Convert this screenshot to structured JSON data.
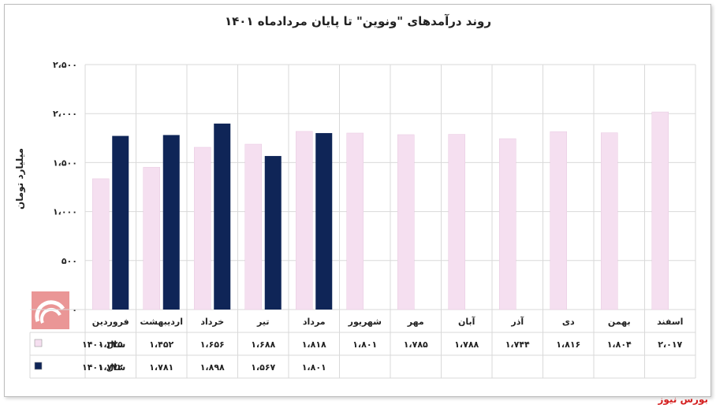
{
  "chart_data": {
    "type": "bar",
    "title": "روند درآمدهای \"ونوین\" تا پایان مردادماه ۱۴۰۱",
    "ylabel": "میلیارد تومان",
    "ylim": [
      0,
      2500
    ],
    "yticks": [
      "۰",
      "۵۰۰",
      "۱،۰۰۰",
      "۱،۵۰۰",
      "۲،۰۰۰",
      "۲،۵۰۰"
    ],
    "categories": [
      "فروردین",
      "اردیبهشت",
      "خرداد",
      "تیر",
      "مرداد",
      "شهریور",
      "مهر",
      "آبان",
      "آذر",
      "دی",
      "بهمن",
      "اسفند"
    ],
    "series": [
      {
        "name": "سال ۱۴۰۰",
        "color": "#f5dff0",
        "values": [
          1335,
          1452,
          1656,
          1688,
          1818,
          1801,
          1785,
          1788,
          1744,
          1816,
          1804,
          2017
        ],
        "labels": [
          "۱،۳۳۵",
          "۱،۴۵۲",
          "۱،۶۵۶",
          "۱،۶۸۸",
          "۱،۸۱۸",
          "۱،۸۰۱",
          "۱،۷۸۵",
          "۱،۷۸۸",
          "۱،۷۴۴",
          "۱،۸۱۶",
          "۱،۸۰۴",
          "۲،۰۱۷"
        ]
      },
      {
        "name": "سال ۱۴۰۱",
        "color": "#0f2557",
        "values": [
          1772,
          1781,
          1898,
          1567,
          1801,
          null,
          null,
          null,
          null,
          null,
          null,
          null
        ],
        "labels": [
          "۱،۷۷۲",
          "۱،۷۸۱",
          "۱،۸۹۸",
          "۱،۵۶۷",
          "۱،۸۰۱",
          "",
          "",
          "",
          "",
          "",
          "",
          ""
        ]
      }
    ],
    "grid": true,
    "legend": "data-table-left"
  },
  "source": "بورس نیوز"
}
